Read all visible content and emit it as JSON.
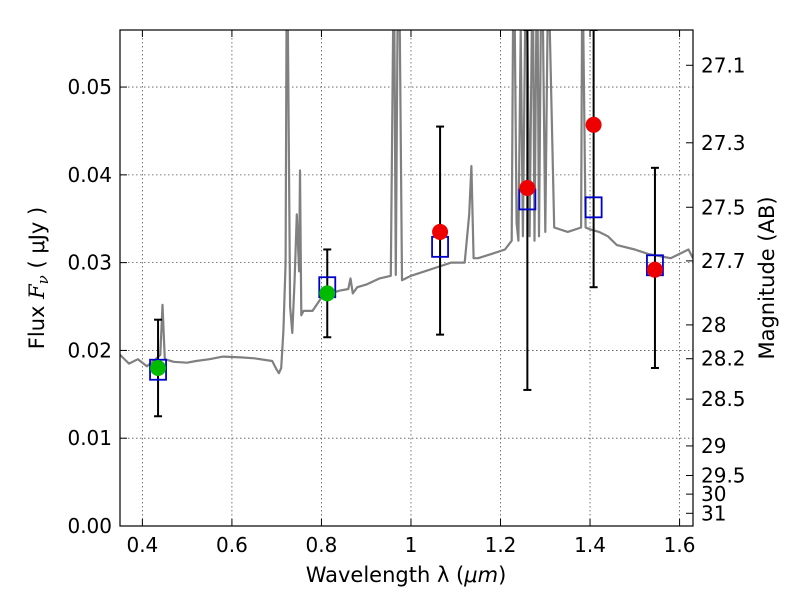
{
  "chart_data": {
    "type": "scatter",
    "title": "",
    "xlabel_prefix": "Wavelength  λ (",
    "xlabel_unit": "μm",
    "xlabel_suffix": ")",
    "ylabel_prefix": "Flux  ",
    "ylabel_symbol": "F",
    "ylabel_sub": "ν",
    "ylabel_suffix": "  ( μJy )",
    "y2label": "Magnitude (AB)",
    "xlim": [
      0.35,
      1.63
    ],
    "ylim": [
      0.0,
      0.0565
    ],
    "grid": true,
    "x_ticks": [
      0.4,
      0.6,
      0.8,
      1.0,
      1.2,
      1.4,
      1.6
    ],
    "x_tick_labels": [
      "0.4",
      "0.6",
      "0.8",
      "1",
      "1.2",
      "1.4",
      "1.6"
    ],
    "y_ticks": [
      0.0,
      0.01,
      0.02,
      0.03,
      0.04,
      0.05
    ],
    "y_tick_labels": [
      "0.00",
      "0.01",
      "0.02",
      "0.03",
      "0.04",
      "0.05"
    ],
    "y2_ticks": [
      27.1,
      27.3,
      27.5,
      27.7,
      28,
      28.2,
      28.5,
      29,
      29.5,
      30,
      31
    ],
    "y2_tick_labels": [
      "27.1",
      "27.3",
      "27.5",
      "27.7",
      "28",
      "28.2",
      "28.5",
      "29",
      "29.5",
      "30",
      "31"
    ],
    "colors": {
      "spectrum": "#808080",
      "model_marker": "#0000cc",
      "optical_obs": "#00bb00",
      "nir_obs": "#ee0000",
      "errorbar": "#000000",
      "grid": "#555555"
    },
    "series": [
      {
        "name": "model spectrum",
        "kind": "line",
        "x": [
          0.35,
          0.37,
          0.39,
          0.41,
          0.43,
          0.44,
          0.445,
          0.45,
          0.47,
          0.5,
          0.52,
          0.55,
          0.58,
          0.62,
          0.65,
          0.69,
          0.7,
          0.705,
          0.71,
          0.715,
          0.72,
          0.722,
          0.725,
          0.73,
          0.735,
          0.74,
          0.745,
          0.75,
          0.752,
          0.755,
          0.76,
          0.78,
          0.8,
          0.82,
          0.84,
          0.86,
          0.865,
          0.87,
          0.88,
          0.9,
          0.93,
          0.955,
          0.96,
          0.963,
          0.966,
          0.97,
          0.975,
          0.98,
          1.0,
          1.03,
          1.06,
          1.09,
          1.12,
          1.13,
          1.135,
          1.14,
          1.15,
          1.18,
          1.21,
          1.225,
          1.228,
          1.232,
          1.236,
          1.24,
          1.245,
          1.25,
          1.255,
          1.26,
          1.265,
          1.27,
          1.273,
          1.276,
          1.28,
          1.283,
          1.286,
          1.29,
          1.295,
          1.3,
          1.305,
          1.31,
          1.32,
          1.35,
          1.38,
          1.382,
          1.385,
          1.39,
          1.4,
          1.42,
          1.44,
          1.46,
          1.5,
          1.53,
          1.56,
          1.58,
          1.6,
          1.62,
          1.63
        ],
        "y": [
          0.0195,
          0.0185,
          0.019,
          0.0182,
          0.019,
          0.0195,
          0.0252,
          0.019,
          0.0187,
          0.0186,
          0.0188,
          0.019,
          0.0193,
          0.0192,
          0.0191,
          0.0188,
          0.0178,
          0.0174,
          0.018,
          0.0222,
          0.03,
          0.0565,
          0.0565,
          0.025,
          0.022,
          0.028,
          0.0355,
          0.029,
          0.0405,
          0.024,
          0.0245,
          0.0245,
          0.026,
          0.0265,
          0.0268,
          0.027,
          0.0282,
          0.0265,
          0.0272,
          0.0275,
          0.0282,
          0.0285,
          0.0565,
          0.0565,
          0.0286,
          0.0565,
          0.0565,
          0.028,
          0.0285,
          0.029,
          0.0295,
          0.03,
          0.03,
          0.0355,
          0.041,
          0.0305,
          0.0305,
          0.031,
          0.0315,
          0.0325,
          0.0565,
          0.0565,
          0.0345,
          0.0325,
          0.0565,
          0.033,
          0.0565,
          0.0565,
          0.033,
          0.0565,
          0.0565,
          0.0325,
          0.0565,
          0.0565,
          0.033,
          0.0565,
          0.0565,
          0.0335,
          0.0565,
          0.0565,
          0.034,
          0.0335,
          0.034,
          0.0565,
          0.0565,
          0.034,
          0.0338,
          0.0335,
          0.033,
          0.032,
          0.0315,
          0.031,
          0.0307,
          0.0305,
          0.031,
          0.0315,
          0.0305
        ]
      },
      {
        "name": "model photometry",
        "kind": "open-square",
        "x": [
          0.435,
          0.813,
          1.065,
          1.26,
          1.408,
          1.545
        ],
        "y": [
          0.0178,
          0.0272,
          0.0318,
          0.0372,
          0.0363,
          0.0297
        ]
      },
      {
        "name": "optical photometry",
        "kind": "filled-circle",
        "color_key": "optical_obs",
        "x": [
          0.435,
          0.813
        ],
        "y": [
          0.018,
          0.0265
        ]
      },
      {
        "name": "near-infrared photometry",
        "kind": "filled-circle",
        "color_key": "nir_obs",
        "x": [
          1.065,
          1.26,
          1.408,
          1.545
        ],
        "y": [
          0.0335,
          0.0385,
          0.0457,
          0.0292
        ],
        "yerr_low": [
          0.0218,
          0.0155,
          0.0272,
          0.018
        ],
        "yerr_high": [
          0.0455,
          0.0565,
          0.0565,
          0.0408
        ]
      },
      {
        "name": "optical errorbars",
        "kind": "errorbar",
        "x": [
          0.435,
          0.813
        ],
        "yerr_low": [
          0.0125,
          0.0215
        ],
        "yerr_high": [
          0.0235,
          0.0315
        ]
      }
    ]
  }
}
